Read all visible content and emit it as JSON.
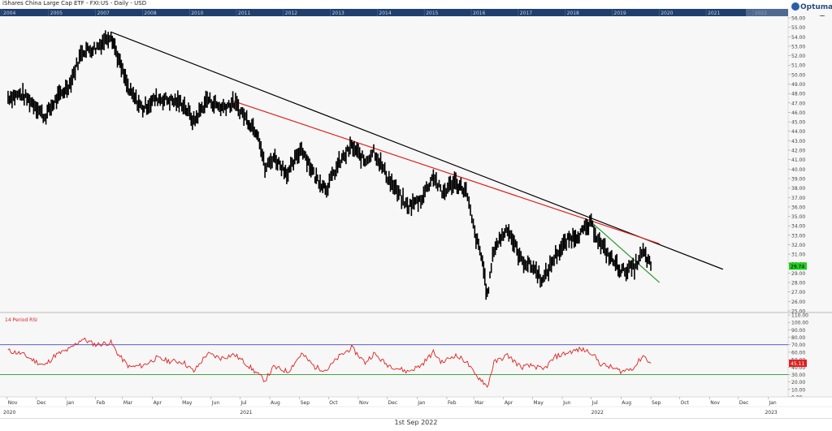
{
  "title": "iShares China Large Cap ETF - FXI:US - Daily - USD",
  "timeline_years": [
    "2004",
    "2005",
    "2007",
    "2008",
    "2010",
    "2011",
    "2012",
    "2013",
    "2014",
    "2015",
    "2016",
    "2017",
    "2018",
    "2019",
    "2020",
    "2021",
    "2022"
  ],
  "logo_text": "Optuma",
  "footer_date": "1st Sep 2022",
  "colors": {
    "price": "#000000",
    "trend_black": "#000000",
    "trend_red": "#e02020",
    "trend_green": "#2a9a2a",
    "rsi": "#e02020",
    "rsi_upper": "#2a2ab0",
    "rsi_lower": "#2a9a2a",
    "last_price_bg": "#22cc22",
    "last_rsi_bg": "#e02020"
  },
  "chart_data": [
    {
      "type": "line",
      "title": "iShares China Large Cap ETF - FXI:US - Daily - USD",
      "x_axis_months": [
        "Nov",
        "Dec",
        "Jan",
        "Feb",
        "Mar",
        "Apr",
        "May",
        "Jun",
        "Jul",
        "Aug",
        "Sep",
        "Oct",
        "Nov",
        "Dec",
        "Jan",
        "Feb",
        "Mar",
        "Apr",
        "May",
        "Jun",
        "Jul",
        "Aug",
        "Sep",
        "Oct",
        "Nov",
        "Dec",
        "Jan"
      ],
      "x_axis_years": [
        "2020",
        "2021",
        "2022",
        "2023"
      ],
      "y_ticks": [
        25,
        26,
        27,
        28,
        29,
        30,
        31,
        32,
        33,
        34,
        35,
        36,
        37,
        38,
        39,
        40,
        41,
        42,
        43,
        44,
        45,
        46,
        47,
        48,
        49,
        50,
        51,
        52,
        53,
        54,
        55,
        56
      ],
      "ylim": [
        25,
        56
      ],
      "last_price": "29.74",
      "price_series": [
        [
          "2020-11-02",
          47.6
        ],
        [
          "2020-11-16",
          47.9
        ],
        [
          "2020-11-30",
          46.8
        ],
        [
          "2020-12-10",
          45.5
        ],
        [
          "2020-12-21",
          47.2
        ],
        [
          "2021-01-05",
          49.0
        ],
        [
          "2021-01-18",
          52.5
        ],
        [
          "2021-02-01",
          52.8
        ],
        [
          "2021-02-17",
          54.3
        ],
        [
          "2021-02-25",
          51.5
        ],
        [
          "2021-03-08",
          48.2
        ],
        [
          "2021-03-22",
          46.4
        ],
        [
          "2021-04-05",
          47.5
        ],
        [
          "2021-04-19",
          47.3
        ],
        [
          "2021-05-03",
          46.9
        ],
        [
          "2021-05-14",
          45.0
        ],
        [
          "2021-05-28",
          47.4
        ],
        [
          "2021-06-11",
          46.5
        ],
        [
          "2021-06-25",
          47.0
        ],
        [
          "2021-07-08",
          45.3
        ],
        [
          "2021-07-20",
          43.8
        ],
        [
          "2021-07-27",
          40.0
        ],
        [
          "2021-08-05",
          41.3
        ],
        [
          "2021-08-20",
          39.5
        ],
        [
          "2021-09-03",
          42.3
        ],
        [
          "2021-09-17",
          39.2
        ],
        [
          "2021-09-29",
          38.0
        ],
        [
          "2021-10-12",
          40.6
        ],
        [
          "2021-10-25",
          42.4
        ],
        [
          "2021-11-08",
          40.8
        ],
        [
          "2021-11-17",
          42.0
        ],
        [
          "2021-11-30",
          39.4
        ],
        [
          "2021-12-13",
          37.3
        ],
        [
          "2021-12-22",
          36.0
        ],
        [
          "2022-01-05",
          36.8
        ],
        [
          "2022-01-18",
          39.3
        ],
        [
          "2022-01-27",
          37.4
        ],
        [
          "2022-02-09",
          38.7
        ],
        [
          "2022-02-21",
          37.6
        ],
        [
          "2022-03-02",
          33.2
        ],
        [
          "2022-03-10",
          30.3
        ],
        [
          "2022-03-15",
          26.5
        ],
        [
          "2022-03-22",
          31.6
        ],
        [
          "2022-04-05",
          33.8
        ],
        [
          "2022-04-19",
          30.4
        ],
        [
          "2022-05-02",
          29.6
        ],
        [
          "2022-05-12",
          28.2
        ],
        [
          "2022-05-25",
          30.9
        ],
        [
          "2022-06-08",
          32.6
        ],
        [
          "2022-06-20",
          33.2
        ],
        [
          "2022-07-01",
          34.2
        ],
        [
          "2022-07-11",
          32.0
        ],
        [
          "2022-07-21",
          30.6
        ],
        [
          "2022-08-02",
          29.2
        ],
        [
          "2022-08-15",
          29.6
        ],
        [
          "2022-08-24",
          31.2
        ],
        [
          "2022-09-01",
          29.74
        ]
      ],
      "trendlines": [
        {
          "name": "black",
          "from": [
            "2021-02-17",
            54.5
          ],
          "to": [
            "2022-11-15",
            29.4
          ]
        },
        {
          "name": "red",
          "from": [
            "2021-06-24",
            47.2
          ],
          "to": [
            "2022-09-10",
            32.1
          ]
        },
        {
          "name": "green",
          "from": [
            "2022-07-01",
            34.4
          ],
          "to": [
            "2022-09-10",
            28.0
          ]
        }
      ]
    },
    {
      "type": "line",
      "title": "14 Period RSI",
      "y_ticks": [
        0,
        10,
        20,
        30,
        40,
        50,
        60,
        70,
        80,
        90,
        100,
        110
      ],
      "y_tick_labels": [
        "0.00",
        "10.00",
        "20.00",
        "30.00",
        "40.00",
        "50.00",
        "60.00",
        "70.00",
        "80.00",
        "90.00",
        "100.00",
        "110.00"
      ],
      "ylim": [
        0,
        110
      ],
      "upper_level": 70,
      "lower_level": 30,
      "last_value": "45.11",
      "series": [
        [
          "2020-11-02",
          62
        ],
        [
          "2020-11-16",
          58
        ],
        [
          "2020-11-30",
          48
        ],
        [
          "2020-12-10",
          42
        ],
        [
          "2020-12-21",
          56
        ],
        [
          "2021-01-05",
          64
        ],
        [
          "2021-01-18",
          78
        ],
        [
          "2021-02-01",
          70
        ],
        [
          "2021-02-17",
          73
        ],
        [
          "2021-02-25",
          56
        ],
        [
          "2021-03-08",
          40
        ],
        [
          "2021-03-22",
          42
        ],
        [
          "2021-04-05",
          52
        ],
        [
          "2021-04-19",
          48
        ],
        [
          "2021-05-03",
          47
        ],
        [
          "2021-05-14",
          34
        ],
        [
          "2021-05-28",
          58
        ],
        [
          "2021-06-11",
          52
        ],
        [
          "2021-06-25",
          57
        ],
        [
          "2021-07-08",
          44
        ],
        [
          "2021-07-20",
          30
        ],
        [
          "2021-07-27",
          22
        ],
        [
          "2021-08-05",
          40
        ],
        [
          "2021-08-20",
          34
        ],
        [
          "2021-09-03",
          58
        ],
        [
          "2021-09-17",
          40
        ],
        [
          "2021-09-29",
          36
        ],
        [
          "2021-10-12",
          54
        ],
        [
          "2021-10-25",
          66
        ],
        [
          "2021-11-08",
          46
        ],
        [
          "2021-11-17",
          58
        ],
        [
          "2021-11-30",
          44
        ],
        [
          "2021-12-13",
          38
        ],
        [
          "2021-12-22",
          34
        ],
        [
          "2022-01-05",
          42
        ],
        [
          "2022-01-18",
          60
        ],
        [
          "2022-01-27",
          46
        ],
        [
          "2022-02-09",
          56
        ],
        [
          "2022-02-21",
          48
        ],
        [
          "2022-03-02",
          30
        ],
        [
          "2022-03-10",
          22
        ],
        [
          "2022-03-15",
          13
        ],
        [
          "2022-03-22",
          46
        ],
        [
          "2022-04-05",
          56
        ],
        [
          "2022-04-19",
          40
        ],
        [
          "2022-05-02",
          42
        ],
        [
          "2022-05-12",
          36
        ],
        [
          "2022-05-25",
          54
        ],
        [
          "2022-06-08",
          60
        ],
        [
          "2022-06-20",
          64
        ],
        [
          "2022-07-01",
          60
        ],
        [
          "2022-07-11",
          44
        ],
        [
          "2022-07-21",
          40
        ],
        [
          "2022-08-02",
          34
        ],
        [
          "2022-08-15",
          40
        ],
        [
          "2022-08-24",
          56
        ],
        [
          "2022-09-01",
          45.11
        ]
      ]
    }
  ]
}
